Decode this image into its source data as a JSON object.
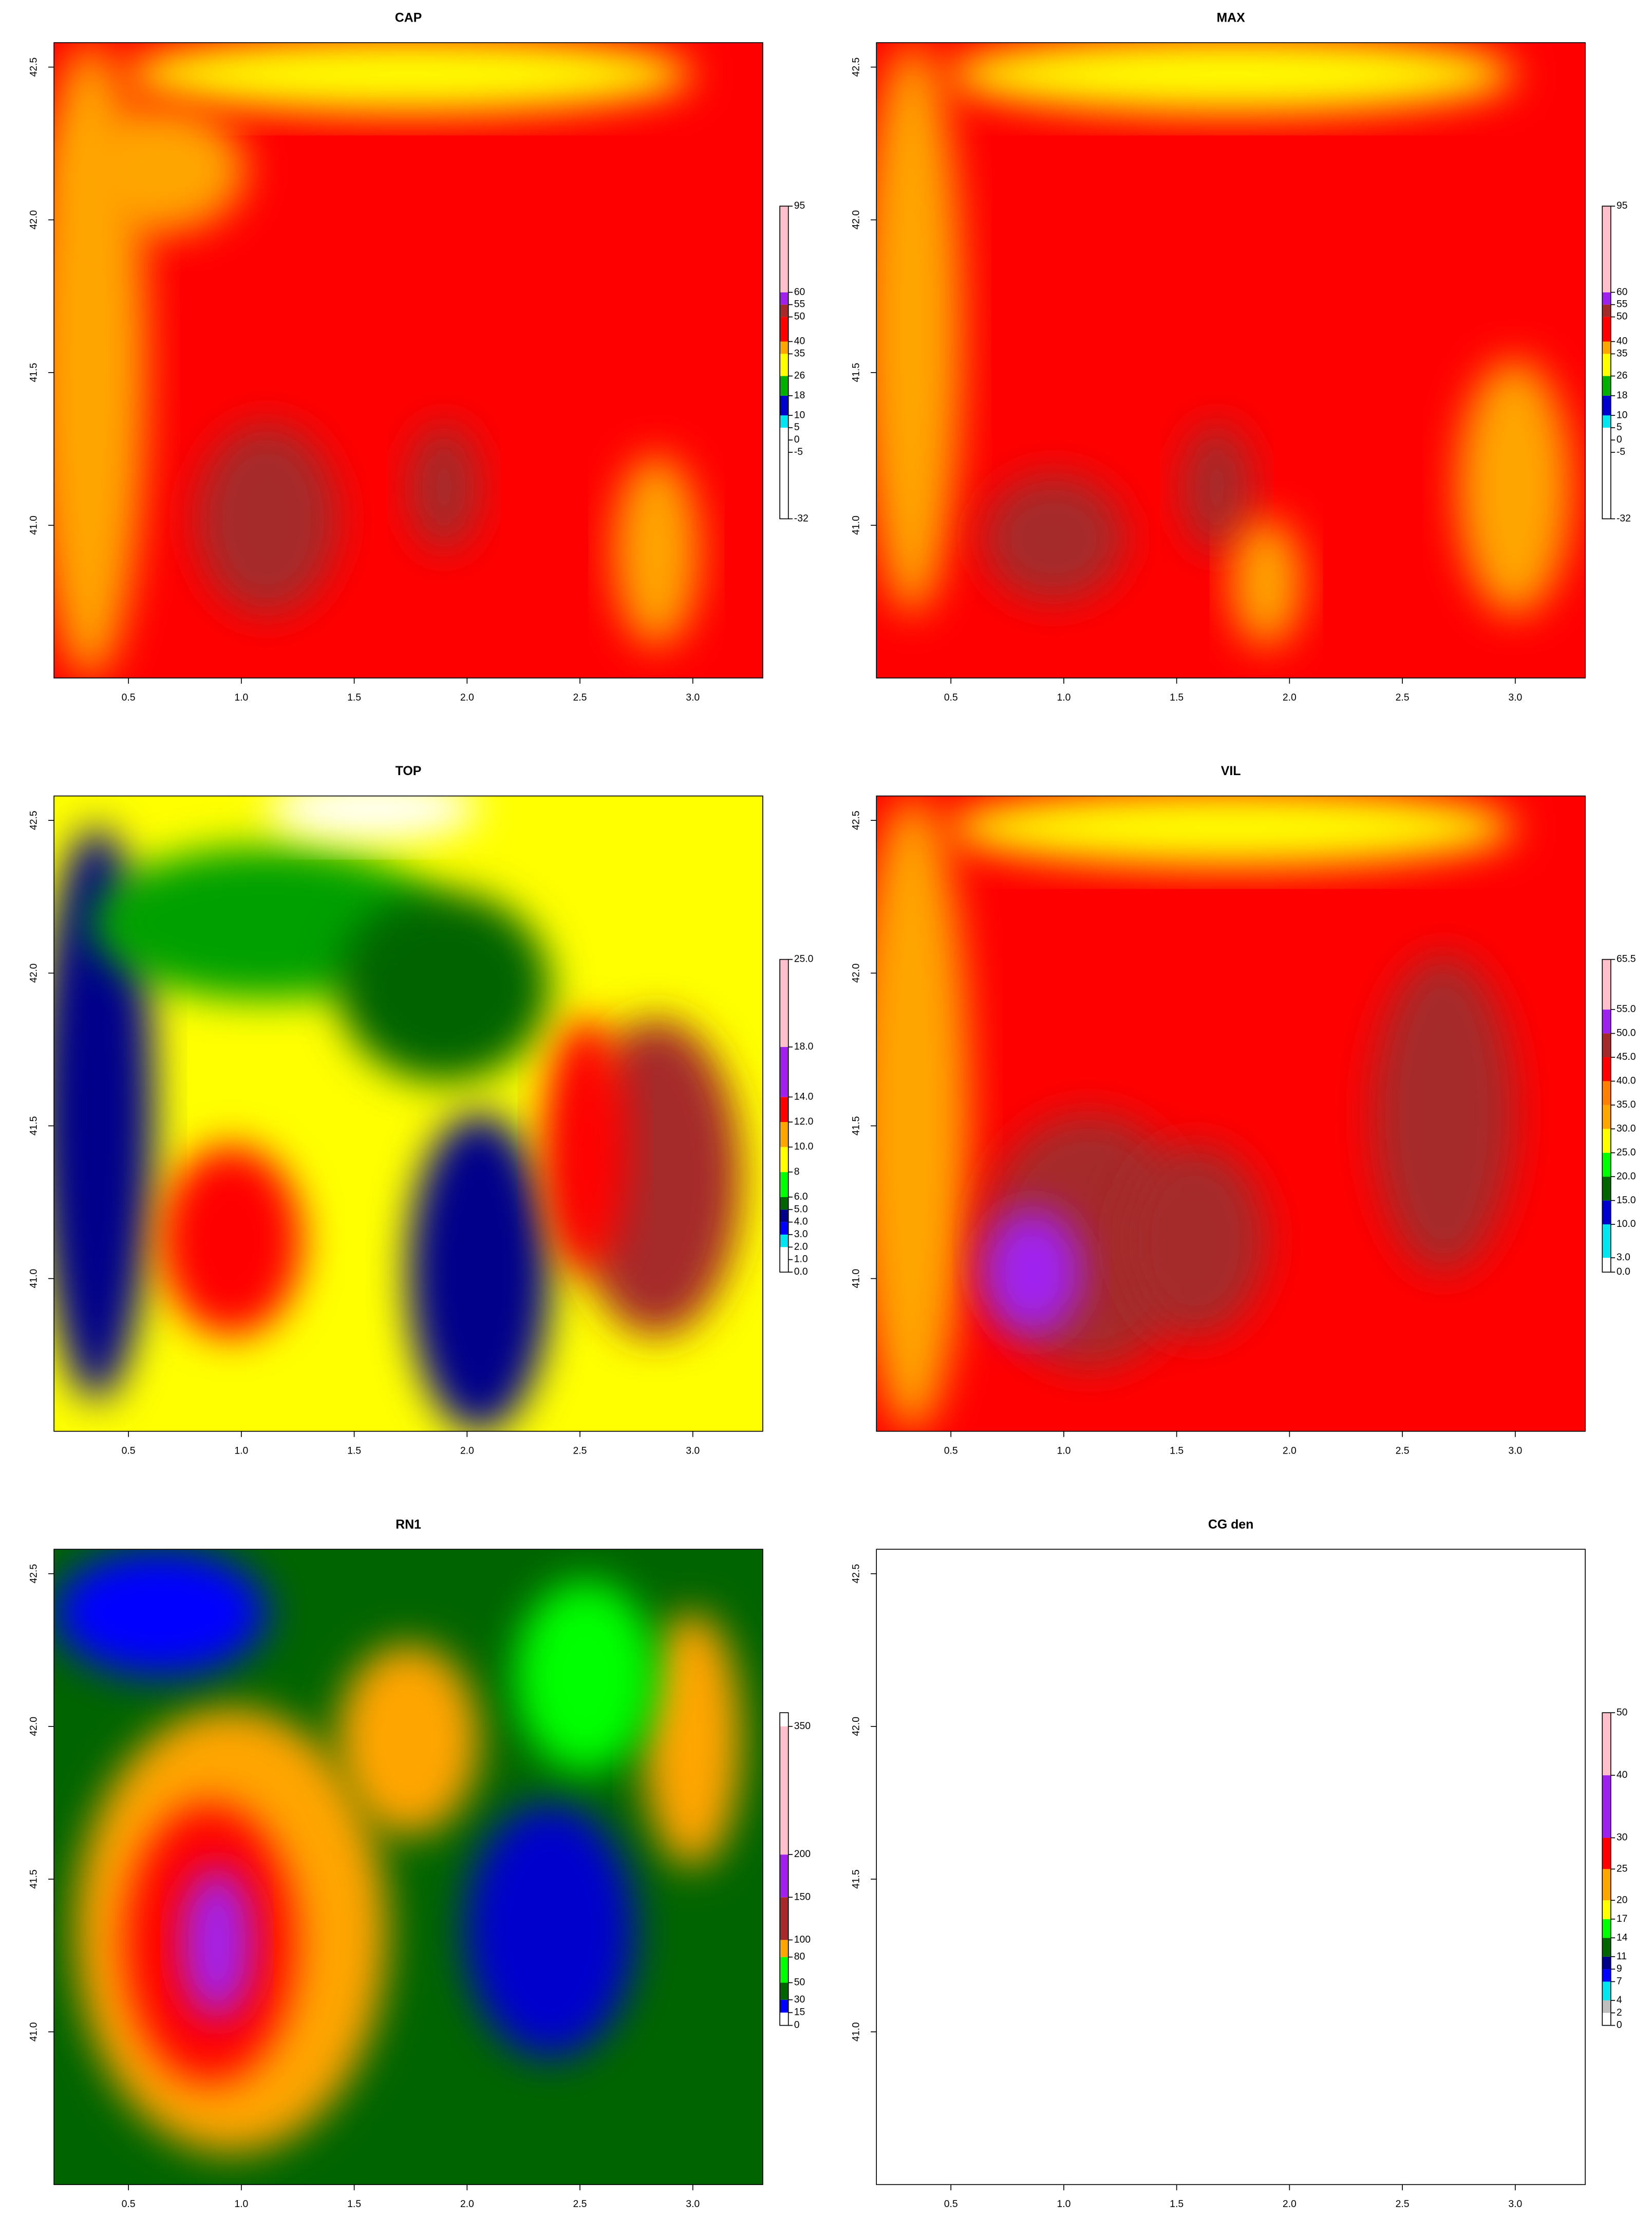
{
  "chart_data": [
    {
      "type": "heatmap",
      "title": "CAP",
      "xlim": [
        0.17,
        3.31
      ],
      "ylim": [
        40.5,
        42.58
      ],
      "xticks": [
        0.5,
        {
          "value": 1,
          "label": "1.0"
        },
        1.5,
        {
          "value": 2,
          "label": "2.0"
        },
        2.5,
        {
          "value": 3,
          "label": "3.0"
        }
      ],
      "yticks": [
        {
          "value": 41,
          "label": "41.0"
        },
        41.5,
        {
          "value": 42,
          "label": "42.0"
        },
        42.5
      ],
      "colorbar_lim": [
        -32,
        95
      ],
      "colorbar_ticks": [
        -32,
        -5,
        0,
        5,
        10,
        18,
        26,
        35,
        40,
        50,
        55,
        60,
        95
      ],
      "colorbar_colors": [
        "#ffffff",
        "#ffffff",
        "#ffffff",
        "#00e5ee",
        "#0000cd",
        "#00b000",
        "#ffff00",
        "#ffa500",
        "#ff0000",
        "#a52a2a",
        "#a020f0",
        "#ffc0cb"
      ]
    },
    {
      "type": "heatmap",
      "title": "MAX",
      "xlim": [
        0.17,
        3.31
      ],
      "ylim": [
        40.5,
        42.58
      ],
      "xticks": [
        0.5,
        {
          "value": 1,
          "label": "1.0"
        },
        1.5,
        {
          "value": 2,
          "label": "2.0"
        },
        2.5,
        {
          "value": 3,
          "label": "3.0"
        }
      ],
      "yticks": [
        {
          "value": 41,
          "label": "41.0"
        },
        41.5,
        {
          "value": 42,
          "label": "42.0"
        },
        42.5
      ],
      "colorbar_lim": [
        -32,
        95
      ],
      "colorbar_ticks": [
        -32,
        -5,
        0,
        5,
        10,
        18,
        26,
        35,
        40,
        50,
        55,
        60,
        95
      ],
      "colorbar_colors": [
        "#ffffff",
        "#ffffff",
        "#ffffff",
        "#00e5ee",
        "#0000cd",
        "#00b000",
        "#ffff00",
        "#ffa500",
        "#ff0000",
        "#a52a2a",
        "#a020f0",
        "#ffc0cb"
      ]
    },
    {
      "type": "heatmap",
      "title": "TOP",
      "xlim": [
        0.17,
        3.31
      ],
      "ylim": [
        40.5,
        42.58
      ],
      "xticks": [
        0.5,
        {
          "value": 1,
          "label": "1.0"
        },
        1.5,
        {
          "value": 2,
          "label": "2.0"
        },
        2.5,
        {
          "value": 3,
          "label": "3.0"
        }
      ],
      "yticks": [
        {
          "value": 41,
          "label": "41.0"
        },
        41.5,
        {
          "value": 42,
          "label": "42.0"
        },
        42.5
      ],
      "colorbar_lim": [
        0,
        25
      ],
      "colorbar_ticks": [
        {
          "value": 0,
          "label": "0.0"
        },
        {
          "value": 1,
          "label": "1.0"
        },
        {
          "value": 2,
          "label": "2.0"
        },
        {
          "value": 3,
          "label": "3.0"
        },
        {
          "value": 4,
          "label": "4.0"
        },
        {
          "value": 5,
          "label": "5.0"
        },
        {
          "value": 6,
          "label": "6.0"
        },
        8,
        {
          "value": 10,
          "label": "10.0"
        },
        {
          "value": 12,
          "label": "12.0"
        },
        {
          "value": 14,
          "label": "14.0"
        },
        {
          "value": 18,
          "label": "18.0"
        },
        {
          "value": 25,
          "label": "25.0"
        }
      ],
      "colorbar_colors": [
        "#ffffff",
        "#ffffff",
        "#00e5ee",
        "#0000ff",
        "#00008b",
        "#006400",
        "#00ff00",
        "#ffff00",
        "#ffa500",
        "#ff0000",
        "#a020f0",
        "#ffc0cb"
      ]
    },
    {
      "type": "heatmap",
      "title": "VIL",
      "xlim": [
        0.17,
        3.31
      ],
      "ylim": [
        40.5,
        42.58
      ],
      "xticks": [
        0.5,
        {
          "value": 1,
          "label": "1.0"
        },
        1.5,
        {
          "value": 2,
          "label": "2.0"
        },
        2.5,
        {
          "value": 3,
          "label": "3.0"
        }
      ],
      "yticks": [
        {
          "value": 41,
          "label": "41.0"
        },
        41.5,
        {
          "value": 42,
          "label": "42.0"
        },
        42.5
      ],
      "colorbar_lim": [
        0,
        65.5
      ],
      "colorbar_ticks": [
        {
          "value": 0,
          "label": "0.0"
        },
        {
          "value": 3,
          "label": "3.0"
        },
        {
          "value": 10,
          "label": "10.0"
        },
        {
          "value": 15,
          "label": "15.0"
        },
        {
          "value": 20,
          "label": "20.0"
        },
        {
          "value": 25,
          "label": "25.0"
        },
        {
          "value": 30,
          "label": "30.0"
        },
        {
          "value": 35,
          "label": "35.0"
        },
        {
          "value": 40,
          "label": "40.0"
        },
        {
          "value": 45,
          "label": "45.0"
        },
        {
          "value": 50,
          "label": "50.0"
        },
        {
          "value": 55,
          "label": "55.0"
        },
        65.5
      ],
      "colorbar_colors": [
        "#ffffff",
        "#00e5ee",
        "#0000cd",
        "#006400",
        "#00ff00",
        "#ffff00",
        "#ffa500",
        "#ff7f00",
        "#ff0000",
        "#a52a2a",
        "#a020f0",
        "#ffc0cb"
      ]
    },
    {
      "type": "heatmap",
      "title": "RN1",
      "xlim": [
        0.17,
        3.31
      ],
      "ylim": [
        40.5,
        42.58
      ],
      "xticks": [
        0.5,
        {
          "value": 1,
          "label": "1.0"
        },
        1.5,
        {
          "value": 2,
          "label": "2.0"
        },
        2.5,
        {
          "value": 3,
          "label": "3.0"
        }
      ],
      "yticks": [
        {
          "value": 41,
          "label": "41.0"
        },
        41.5,
        {
          "value": 42,
          "label": "42.0"
        },
        42.5
      ],
      "colorbar_lim": [
        0,
        366
      ],
      "colorbar_ticks": [
        0,
        15,
        30,
        50,
        80,
        100,
        150,
        200,
        350
      ],
      "colorbar_colors": [
        "#ffffff",
        "#0000ff",
        "#006400",
        "#00ff00",
        "#ffa500",
        "#a52a2a",
        "#a020f0",
        "#ffc0cb"
      ]
    },
    {
      "type": "heatmap",
      "title": "CG den",
      "xlim": [
        0.17,
        3.31
      ],
      "ylim": [
        40.5,
        42.58
      ],
      "xticks": [
        0.5,
        {
          "value": 1,
          "label": "1.0"
        },
        1.5,
        {
          "value": 2,
          "label": "2.0"
        },
        2.5,
        {
          "value": 3,
          "label": "3.0"
        }
      ],
      "yticks": [
        {
          "value": 41,
          "label": "41.0"
        },
        41.5,
        {
          "value": 42,
          "label": "42.0"
        },
        42.5
      ],
      "colorbar_lim": [
        0,
        50
      ],
      "colorbar_ticks": [
        0,
        2,
        4,
        7,
        9,
        11,
        14,
        17,
        20,
        25,
        30,
        40,
        50
      ],
      "colorbar_colors": [
        "#ffffff",
        "#bebebe",
        "#00e5ee",
        "#0000ff",
        "#00008b",
        "#006400",
        "#00ff00",
        "#ffff00",
        "#ffa500",
        "#ff0000",
        "#a020f0",
        "#ffc0cb"
      ]
    }
  ]
}
